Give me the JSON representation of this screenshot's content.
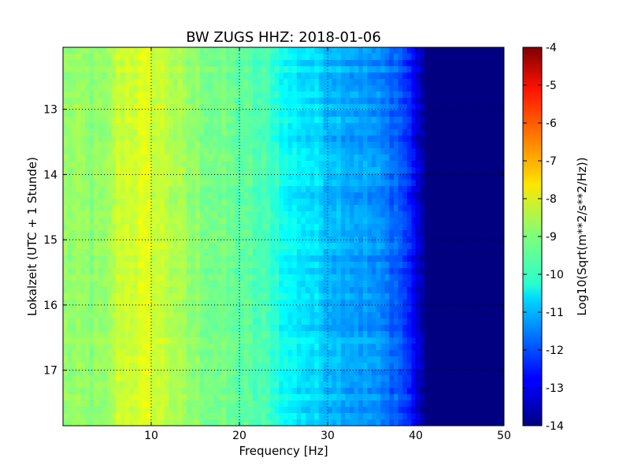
{
  "chart_data": {
    "type": "heatmap",
    "title": "BW ZUGS HHZ: 2018-01-06",
    "xlabel": "Frequency [Hz]",
    "ylabel": "Lokalzeit (UTC + 1 Stunde)",
    "xlim": [
      0,
      50
    ],
    "ylim": [
      17.85,
      12.05
    ],
    "y_inverted": true,
    "x_ticks": [
      "10",
      "20",
      "30",
      "40",
      "50"
    ],
    "x_tick_values": [
      10,
      20,
      30,
      40,
      50
    ],
    "y_ticks": [
      "13",
      "14",
      "15",
      "16",
      "17"
    ],
    "y_tick_values": [
      13,
      14,
      15,
      16,
      17
    ],
    "grid": true,
    "colormap": "jet",
    "frequency_profile": {
      "frequency_hz": [
        0,
        5,
        6,
        9,
        12,
        14,
        20,
        24,
        25,
        30,
        35,
        38,
        40,
        41,
        42,
        50
      ],
      "log10_amplitude": [
        -8.8,
        -8.9,
        -8.3,
        -8.1,
        -8.4,
        -8.8,
        -9.3,
        -9.7,
        -10.2,
        -10.8,
        -11.3,
        -11.8,
        -12.8,
        -14,
        -14,
        -14
      ]
    },
    "colorbar": {
      "label": "Log10(Sqrt(m**2/s**2/Hz))",
      "min": -14,
      "max": -4,
      "ticks": [
        "-4",
        "-5",
        "-6",
        "-7",
        "-8",
        "-9",
        "-10",
        "-11",
        "-12",
        "-13",
        "-14"
      ],
      "tick_values": [
        -4,
        -5,
        -6,
        -7,
        -8,
        -9,
        -10,
        -11,
        -12,
        -13,
        -14
      ]
    }
  }
}
